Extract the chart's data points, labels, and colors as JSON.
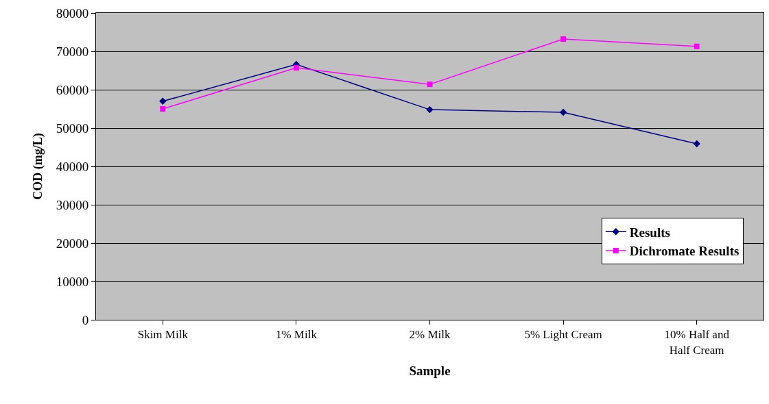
{
  "chart_data": {
    "type": "line",
    "xlabel": "Sample",
    "ylabel": "COD (mg/L)",
    "categories": [
      "Skim Milk",
      "1% Milk",
      "2% Milk",
      "5% Light Cream",
      "10% Half and\nHalf Cream"
    ],
    "series": [
      {
        "name": "Results",
        "color": "#000080",
        "marker": "diamond",
        "values": [
          57000,
          66600,
          54800,
          54100,
          45900
        ]
      },
      {
        "name": "Dichromate Results",
        "color": "#ff00ff",
        "marker": "square",
        "values": [
          55000,
          65700,
          61400,
          73200,
          71300
        ]
      }
    ],
    "ylim": [
      0,
      80000
    ],
    "yticks": [
      0,
      10000,
      20000,
      30000,
      40000,
      50000,
      60000,
      70000,
      80000
    ],
    "grid": "y",
    "legend": "bottom right",
    "line_style": "solid"
  }
}
